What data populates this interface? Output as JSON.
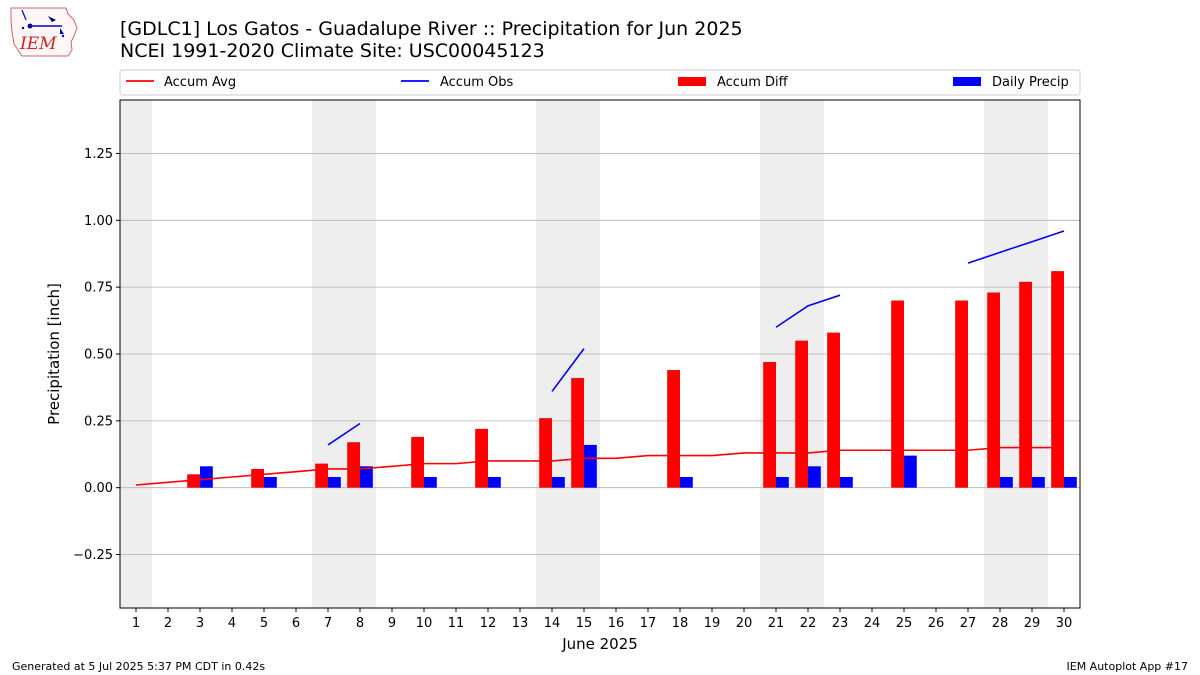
{
  "header": {
    "title_line1": "[GDLC1] Los Gatos - Guadalupe River :: Precipitation for Jun 2025",
    "title_line2": "NCEI 1991-2020 Climate Site: USC00045123"
  },
  "logo": {
    "text": "IEM",
    "icon": "iowa-state-logo"
  },
  "footer": {
    "left": "Generated at 5 Jul 2025 5:37 PM CDT in 0.42s",
    "right": "IEM Autoplot App #17"
  },
  "colors": {
    "avg": "#ff0000",
    "obs": "#0000ff",
    "diff": "#ff0000",
    "daily": "#0000ff",
    "weekend": "#eeeeee",
    "grid": "#b0b0b0"
  },
  "chart_data": {
    "type": "bar",
    "title": "[GDLC1] Los Gatos - Guadalupe River :: Precipitation for Jun 2025",
    "subtitle": "NCEI 1991-2020 Climate Site: USC00045123",
    "xlabel": "June 2025",
    "ylabel": "Precipitation [inch]",
    "ylim": [
      -0.45,
      1.45
    ],
    "xlim": [
      0.5,
      30.5
    ],
    "yticks": [
      -0.25,
      0.0,
      0.25,
      0.5,
      0.75,
      1.0,
      1.25
    ],
    "ytick_labels": [
      "−0.25",
      "0.00",
      "0.25",
      "0.50",
      "0.75",
      "1.00",
      "1.25"
    ],
    "days": [
      1,
      2,
      3,
      4,
      5,
      6,
      7,
      8,
      9,
      10,
      11,
      12,
      13,
      14,
      15,
      16,
      17,
      18,
      19,
      20,
      21,
      22,
      23,
      24,
      25,
      26,
      27,
      28,
      29,
      30
    ],
    "weekend_days": [
      1,
      7,
      8,
      14,
      15,
      21,
      22,
      28,
      29
    ],
    "grid": true,
    "legend_placement": "top",
    "legend": [
      {
        "label": "Accum Avg",
        "kind": "line",
        "color": "#ff0000"
      },
      {
        "label": "Accum Obs",
        "kind": "line",
        "color": "#0000ff"
      },
      {
        "label": "Accum Diff",
        "kind": "bar",
        "color": "#ff0000"
      },
      {
        "label": "Daily Precip",
        "kind": "bar",
        "color": "#0000ff"
      }
    ],
    "series": [
      {
        "name": "Accum Avg",
        "type": "line",
        "color": "#ff0000",
        "x": [
          1,
          2,
          3,
          4,
          5,
          6,
          7,
          8,
          9,
          10,
          11,
          12,
          13,
          14,
          15,
          16,
          17,
          18,
          19,
          20,
          21,
          22,
          23,
          24,
          25,
          26,
          27,
          28,
          29,
          30
        ],
        "values": [
          0.01,
          0.02,
          0.03,
          0.04,
          0.05,
          0.06,
          0.07,
          0.07,
          0.08,
          0.09,
          0.09,
          0.1,
          0.1,
          0.1,
          0.11,
          0.11,
          0.12,
          0.12,
          0.12,
          0.13,
          0.13,
          0.13,
          0.14,
          0.14,
          0.14,
          0.14,
          0.14,
          0.15,
          0.15,
          0.15
        ]
      },
      {
        "name": "Accum Obs",
        "type": "line-segments",
        "color": "#0000ff",
        "segments": [
          {
            "x": [
              7,
              8
            ],
            "values": [
              0.16,
              0.24
            ]
          },
          {
            "x": [
              14,
              15
            ],
            "values": [
              0.36,
              0.52
            ]
          },
          {
            "x": [
              21,
              22,
              23
            ],
            "values": [
              0.6,
              0.68,
              0.72
            ]
          },
          {
            "x": [
              27,
              28,
              29,
              30
            ],
            "values": [
              0.84,
              0.88,
              0.92,
              0.96
            ]
          }
        ]
      },
      {
        "name": "Accum Diff",
        "type": "bar",
        "color": "#ff0000",
        "x": [
          3,
          5,
          7,
          8,
          10,
          12,
          14,
          15,
          18,
          21,
          22,
          23,
          25,
          27,
          28,
          29,
          30
        ],
        "values": [
          0.05,
          0.07,
          0.09,
          0.17,
          0.19,
          0.22,
          0.26,
          0.41,
          0.44,
          0.47,
          0.55,
          0.58,
          0.7,
          0.7,
          0.73,
          0.77,
          0.81
        ]
      },
      {
        "name": "Daily Precip",
        "type": "bar",
        "color": "#0000ff",
        "x": [
          3,
          5,
          7,
          8,
          10,
          12,
          14,
          15,
          18,
          21,
          22,
          23,
          25,
          28,
          29,
          30
        ],
        "values": [
          0.08,
          0.04,
          0.04,
          0.08,
          0.04,
          0.04,
          0.04,
          0.16,
          0.04,
          0.04,
          0.08,
          0.04,
          0.12,
          0.04,
          0.04,
          0.04
        ]
      }
    ]
  }
}
